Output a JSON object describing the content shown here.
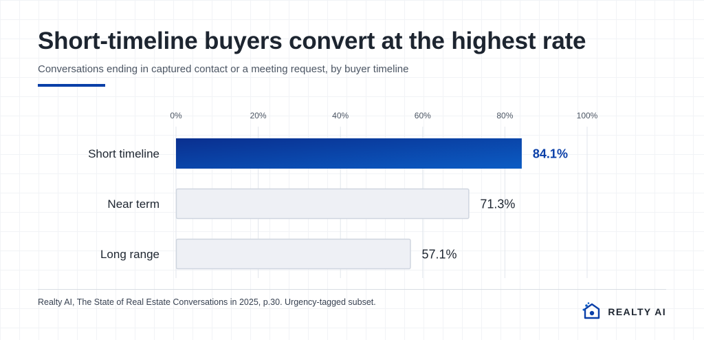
{
  "header": {
    "title": "Short-timeline buyers convert at the highest rate",
    "subtitle": "Conversations ending in captured contact or a meeting request, by buyer timeline"
  },
  "footer": {
    "source": "Realty AI, The State of Real Estate Conversations in 2025, p.30. Urgency-tagged subset.",
    "brand": "REALTY AI"
  },
  "colors": {
    "accent": "#0a3fa8",
    "highlight_bar_start": "#0a2f8f",
    "highlight_bar_end": "#0b5cc4",
    "muted_bar_fill": "#eef0f5",
    "muted_bar_stroke": "#cfd5df",
    "highlight_label": "#0a3fa8",
    "text_dark": "#1d2530",
    "gridline": "#e2e6ec"
  },
  "icons": {
    "brand_mark": "realty-ai-logo-icon"
  },
  "chart_data": {
    "type": "bar",
    "orientation": "horizontal",
    "categories": [
      "Short timeline",
      "Near term",
      "Long range"
    ],
    "values": [
      84.1,
      71.3,
      57.1
    ],
    "value_labels": [
      "84.1%",
      "71.3%",
      "57.1%"
    ],
    "highlighted_category": "Short timeline",
    "xlim": [
      0,
      100
    ],
    "x_ticks": [
      0,
      20,
      40,
      60,
      80,
      100
    ],
    "x_tick_labels": [
      "0%",
      "20%",
      "40%",
      "60%",
      "80%",
      "100%"
    ],
    "x_axis_position": "top",
    "grid": true,
    "legend": "none",
    "xlabel": "",
    "ylabel": ""
  }
}
